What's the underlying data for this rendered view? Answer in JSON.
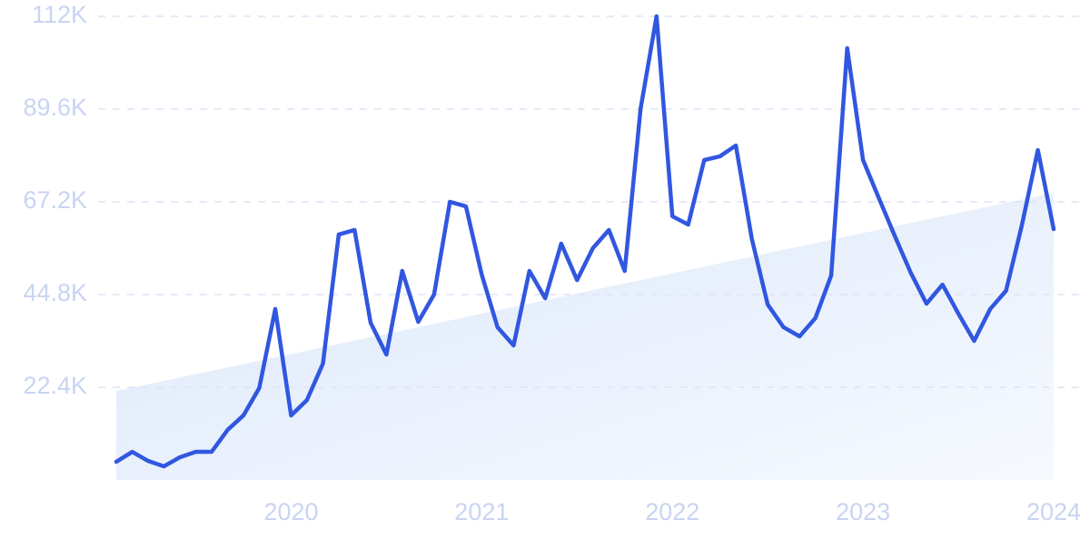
{
  "chart_data": {
    "type": "line",
    "x": [
      2019.083,
      2019.167,
      2019.25,
      2019.333,
      2019.417,
      2019.5,
      2019.583,
      2019.667,
      2019.75,
      2019.833,
      2019.917,
      2020,
      2020.083,
      2020.167,
      2020.25,
      2020.333,
      2020.417,
      2020.5,
      2020.583,
      2020.667,
      2020.75,
      2020.833,
      2020.917,
      2021,
      2021.083,
      2021.167,
      2021.25,
      2021.333,
      2021.417,
      2021.5,
      2021.583,
      2021.667,
      2021.75,
      2021.833,
      2021.917,
      2022,
      2022.083,
      2022.167,
      2022.25,
      2022.333,
      2022.417,
      2022.5,
      2022.583,
      2022.667,
      2022.75,
      2022.833,
      2022.917,
      2023,
      2023.083,
      2023.167,
      2023.25,
      2023.333,
      2023.417,
      2023.5,
      2023.583,
      2023.667,
      2023.75,
      2023.833,
      2023.917,
      2024
    ],
    "series": [
      {
        "color": "#3157e0",
        "values": [
          4.4,
          6.8,
          4.6,
          3.3,
          5.5,
          6.8,
          6.8,
          12.1,
          15.6,
          22.2,
          41.3,
          15.6,
          19.3,
          28.1,
          59.3,
          60.4,
          38.0,
          30.3,
          50.5,
          38.2,
          44.8,
          67.2,
          66.1,
          49.6,
          36.9,
          32.5,
          50.5,
          43.9,
          57.1,
          48.3,
          56.0,
          60.4,
          50.5,
          89.6,
          112,
          63.7,
          61.7,
          77.3,
          78.2,
          80.8,
          58.2,
          42.4,
          36.9,
          34.7,
          39.1,
          49.4,
          104.3,
          77.3,
          68.1,
          58.9,
          50.1,
          42.6,
          47.2,
          40.2,
          33.6,
          41.3,
          45.7,
          61.5,
          79.7,
          60.6
        ]
      }
    ],
    "trend": {
      "x": [
        2019.083,
        2024
      ],
      "values": [
        21.5,
        69.4
      ],
      "color": "#dce8fb"
    },
    "xlim": [
      2019.083,
      2024
    ],
    "xticks": [
      2020,
      2021,
      2022,
      2023,
      2024
    ],
    "ylim": [
      0,
      112
    ],
    "yticks": [
      {
        "value": 22.4,
        "label": "22.4K"
      },
      {
        "value": 44.8,
        "label": "44.8K"
      },
      {
        "value": 67.2,
        "label": "67.2K"
      },
      {
        "value": 89.6,
        "label": "89.6K"
      },
      {
        "value": 112,
        "label": "112K"
      }
    ],
    "grid": true
  }
}
